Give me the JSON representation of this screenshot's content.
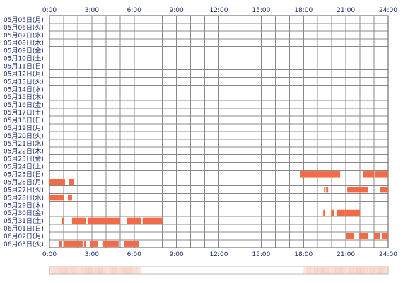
{
  "chart_data": {
    "type": "timeline",
    "x_range_hours": [
      0,
      24
    ],
    "grid": true,
    "hour_ticks": [
      "0:00",
      "3:00",
      "6:00",
      "9:00",
      "12:00",
      "15:00",
      "18:00",
      "21:00",
      "24:00"
    ],
    "days": [
      "05月05日(月)",
      "05月06日(火)",
      "05月07日(水)",
      "05月08日(木)",
      "05月09日(金)",
      "05月10日(土)",
      "05月11日(日)",
      "05月12日(月)",
      "05月13日(火)",
      "05月14日(水)",
      "05月15日(木)",
      "05月16日(金)",
      "05月17日(土)",
      "05月18日(日)",
      "05月19日(月)",
      "05月20日(火)",
      "05月21日(水)",
      "05月22日(木)",
      "05月23日(金)",
      "05月24日(土)",
      "05月25日(日)",
      "05月26日(月)",
      "05月27日(火)",
      "05月28日(水)",
      "05月29日(木)",
      "05月30日(金)",
      "05月31日(土)",
      "06月01日(日)",
      "06月02日(月)",
      "06月03日(火)"
    ],
    "segments": [
      {
        "day": 20,
        "start": 17.75,
        "end": 20.6
      },
      {
        "day": 20,
        "start": 22.2,
        "end": 23.0
      },
      {
        "day": 20,
        "start": 23.1,
        "end": 24.0
      },
      {
        "day": 21,
        "start": 0.0,
        "end": 1.1
      },
      {
        "day": 21,
        "start": 1.35,
        "end": 1.7
      },
      {
        "day": 22,
        "start": 19.45,
        "end": 19.55
      },
      {
        "day": 22,
        "start": 19.6,
        "end": 19.75
      },
      {
        "day": 22,
        "start": 21.1,
        "end": 22.55
      },
      {
        "day": 22,
        "start": 23.45,
        "end": 24.0
      },
      {
        "day": 23,
        "start": 0.0,
        "end": 1.0
      },
      {
        "day": 23,
        "start": 1.3,
        "end": 1.6
      },
      {
        "day": 25,
        "start": 19.4,
        "end": 19.5
      },
      {
        "day": 25,
        "start": 19.95,
        "end": 20.15
      },
      {
        "day": 25,
        "start": 20.35,
        "end": 20.85
      },
      {
        "day": 25,
        "start": 20.9,
        "end": 22.0
      },
      {
        "day": 26,
        "start": 0.85,
        "end": 1.05
      },
      {
        "day": 26,
        "start": 1.6,
        "end": 2.6
      },
      {
        "day": 26,
        "start": 2.7,
        "end": 5.0
      },
      {
        "day": 26,
        "start": 5.5,
        "end": 6.5
      },
      {
        "day": 26,
        "start": 6.6,
        "end": 8.0
      },
      {
        "day": 28,
        "start": 21.0,
        "end": 21.6
      },
      {
        "day": 28,
        "start": 21.95,
        "end": 22.55
      },
      {
        "day": 28,
        "start": 23.0,
        "end": 23.4
      },
      {
        "day": 28,
        "start": 23.6,
        "end": 24.0
      },
      {
        "day": 29,
        "start": 0.7,
        "end": 0.9
      },
      {
        "day": 29,
        "start": 1.05,
        "end": 2.35
      },
      {
        "day": 29,
        "start": 2.45,
        "end": 2.6
      },
      {
        "day": 29,
        "start": 2.85,
        "end": 3.45
      },
      {
        "day": 29,
        "start": 3.75,
        "end": 4.9
      },
      {
        "day": 29,
        "start": 5.3,
        "end": 6.35
      }
    ],
    "summary_bins": {
      "start_hour": 0.0,
      "step_hours": 0.25,
      "intensity": [
        0.35,
        0.4,
        0.45,
        0.5,
        0.55,
        0.45,
        0.5,
        0.45,
        0.4,
        0.45,
        0.5,
        0.55,
        0.45,
        0.5,
        0.55,
        0.4,
        0.35,
        0.45,
        0.5,
        0.4,
        0.45,
        0.55,
        0.5,
        0.45,
        0.4,
        0.35,
        0,
        0,
        0,
        0,
        0,
        0,
        0,
        0,
        0,
        0,
        0,
        0,
        0,
        0,
        0,
        0,
        0,
        0,
        0,
        0,
        0,
        0,
        0,
        0,
        0,
        0,
        0,
        0,
        0,
        0,
        0,
        0,
        0,
        0,
        0,
        0,
        0,
        0,
        0,
        0,
        0,
        0,
        0,
        0,
        0,
        0,
        0.35,
        0.45,
        0.4,
        0.5,
        0.45,
        0.55,
        0.5,
        0.4,
        0.45,
        0.5,
        0.55,
        0.45,
        0.4,
        0.5,
        0.45,
        0.55,
        0.5,
        0.45,
        0.4,
        0.5,
        0.45,
        0.55,
        0.5,
        0.4
      ]
    },
    "colors": {
      "bar": "#f26b46",
      "grid": "#888888",
      "border": "#555555",
      "label": "#1a2a6c",
      "summary_base": "#f7d2c0"
    }
  }
}
